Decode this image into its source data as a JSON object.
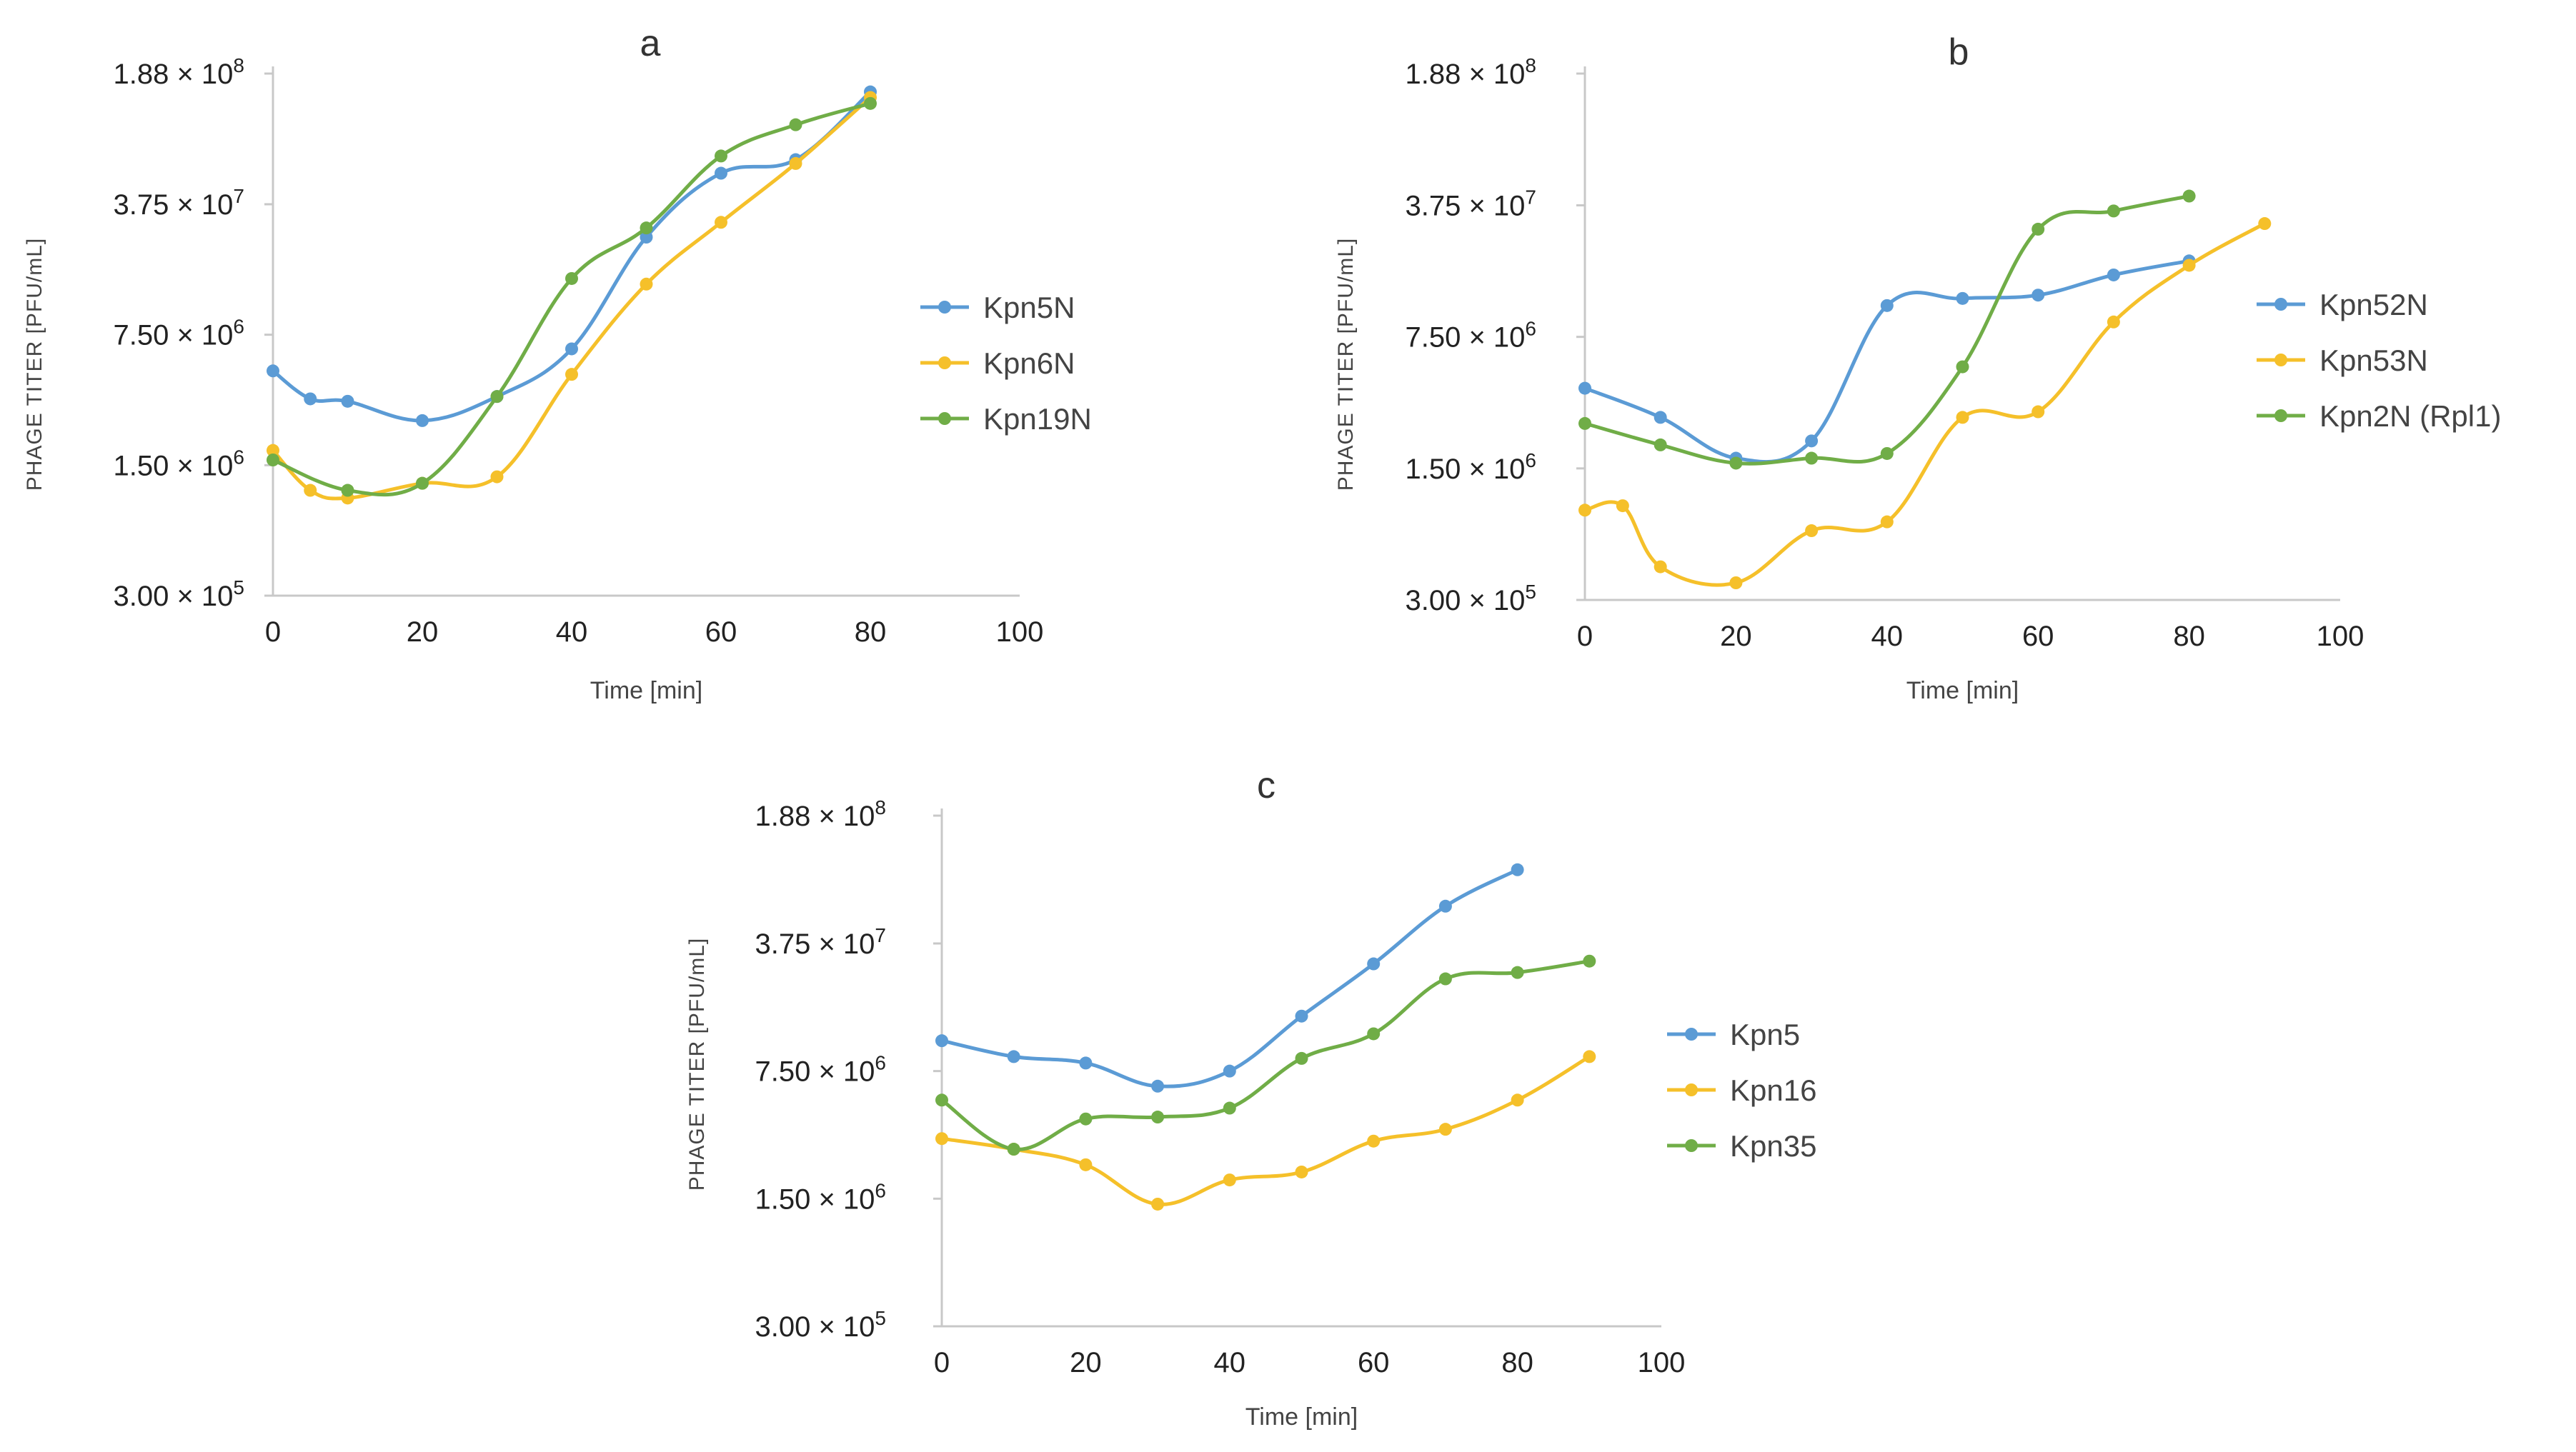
{
  "colors": {
    "blue": "#5b9bd5",
    "yellow": "#f5c02a",
    "green": "#70ad47"
  },
  "chart_data": [
    {
      "type": "line",
      "title": "a",
      "xlabel": "Time [min]",
      "ylabel": "PHAGE TITER [PFU/mL]",
      "xlim": [
        0,
        100
      ],
      "x_ticks": [
        "0",
        "20",
        "40",
        "60",
        "80",
        "100"
      ],
      "y_scale": "log",
      "ylim": [
        300000,
        188000000
      ],
      "y_ticks": [
        {
          "value": 188000000,
          "mant": "1.88",
          "exp": "8"
        },
        {
          "value": 37500000,
          "mant": "3.75",
          "exp": "7"
        },
        {
          "value": 7500000,
          "mant": "7.50",
          "exp": "6"
        },
        {
          "value": 1500000,
          "mant": "1.50",
          "exp": "6"
        },
        {
          "value": 300000,
          "mant": "3.00",
          "exp": "5"
        }
      ],
      "legend_position": "right",
      "series": [
        {
          "name": "Kpn5N",
          "color": "blue",
          "points": [
            [
              0,
              4800000
            ],
            [
              5,
              3400000
            ],
            [
              10,
              3300000
            ],
            [
              20,
              2600000
            ],
            [
              30,
              3500000
            ],
            [
              40,
              6300000
            ],
            [
              50,
              25000000
            ],
            [
              60,
              55000000
            ],
            [
              70,
              65000000
            ],
            [
              80,
              150000000
            ]
          ]
        },
        {
          "name": "Kpn6N",
          "color": "yellow",
          "points": [
            [
              0,
              1800000
            ],
            [
              5,
              1100000
            ],
            [
              10,
              1000000
            ],
            [
              20,
              1200000
            ],
            [
              30,
              1300000
            ],
            [
              40,
              4600000
            ],
            [
              50,
              14000000
            ],
            [
              60,
              30000000
            ],
            [
              70,
              62000000
            ],
            [
              80,
              140000000
            ]
          ]
        },
        {
          "name": "Kpn19N",
          "color": "green",
          "points": [
            [
              0,
              1600000
            ],
            [
              10,
              1100000
            ],
            [
              20,
              1200000
            ],
            [
              30,
              3500000
            ],
            [
              40,
              15000000
            ],
            [
              50,
              28000000
            ],
            [
              60,
              68000000
            ],
            [
              70,
              100000000
            ],
            [
              80,
              130000000
            ]
          ]
        }
      ]
    },
    {
      "type": "line",
      "title": "b",
      "xlabel": "Time [min]",
      "ylabel": "PHAGE TITER [PFU/mL]",
      "xlim": [
        0,
        100
      ],
      "x_ticks": [
        "0",
        "20",
        "40",
        "60",
        "80",
        "100"
      ],
      "y_scale": "log",
      "ylim": [
        300000,
        188000000
      ],
      "y_ticks": [
        {
          "value": 188000000,
          "mant": "1.88",
          "exp": "8"
        },
        {
          "value": 37500000,
          "mant": "3.75",
          "exp": "7"
        },
        {
          "value": 7500000,
          "mant": "7.50",
          "exp": "6"
        },
        {
          "value": 1500000,
          "mant": "1.50",
          "exp": "6"
        },
        {
          "value": 300000,
          "mant": "3.00",
          "exp": "5"
        }
      ],
      "legend_position": "right",
      "series": [
        {
          "name": "Kpn52N",
          "color": "blue",
          "points": [
            [
              0,
              4000000
            ],
            [
              10,
              2800000
            ],
            [
              20,
              1700000
            ],
            [
              30,
              2100000
            ],
            [
              40,
              11000000
            ],
            [
              50,
              12000000
            ],
            [
              60,
              12500000
            ],
            [
              70,
              16000000
            ],
            [
              80,
              19000000
            ]
          ]
        },
        {
          "name": "Kpn53N",
          "color": "yellow",
          "points": [
            [
              0,
              900000
            ],
            [
              5,
              950000
            ],
            [
              10,
              450000
            ],
            [
              20,
              370000
            ],
            [
              30,
              700000
            ],
            [
              40,
              780000
            ],
            [
              50,
              2800000
            ],
            [
              60,
              3000000
            ],
            [
              70,
              9000000
            ],
            [
              80,
              18000000
            ],
            [
              90,
              30000000
            ]
          ]
        },
        {
          "name": "Kpn2N (Rpl1)",
          "color": "green",
          "points": [
            [
              0,
              2600000
            ],
            [
              10,
              2000000
            ],
            [
              20,
              1600000
            ],
            [
              30,
              1700000
            ],
            [
              40,
              1800000
            ],
            [
              50,
              5200000
            ],
            [
              60,
              28000000
            ],
            [
              70,
              35000000
            ],
            [
              80,
              42000000
            ]
          ]
        }
      ]
    },
    {
      "type": "line",
      "title": "c",
      "xlabel": "Time [min]",
      "ylabel": "PHAGE TITER [PFU/mL]",
      "xlim": [
        0,
        100
      ],
      "x_ticks": [
        "0",
        "20",
        "40",
        "60",
        "80",
        "100"
      ],
      "y_scale": "log",
      "ylim": [
        300000,
        188000000
      ],
      "y_ticks": [
        {
          "value": 188000000,
          "mant": "1.88",
          "exp": "8"
        },
        {
          "value": 37500000,
          "mant": "3.75",
          "exp": "7"
        },
        {
          "value": 7500000,
          "mant": "7.50",
          "exp": "6"
        },
        {
          "value": 1500000,
          "mant": "1.50",
          "exp": "6"
        },
        {
          "value": 300000,
          "mant": "3.00",
          "exp": "5"
        }
      ],
      "legend_position": "right",
      "series": [
        {
          "name": "Kpn5",
          "color": "blue",
          "points": [
            [
              0,
              11000000
            ],
            [
              10,
              9000000
            ],
            [
              20,
              8300000
            ],
            [
              30,
              6200000
            ],
            [
              40,
              7500000
            ],
            [
              50,
              15000000
            ],
            [
              60,
              29000000
            ],
            [
              70,
              60000000
            ],
            [
              80,
              95000000
            ]
          ]
        },
        {
          "name": "Kpn16",
          "color": "yellow",
          "points": [
            [
              0,
              3200000
            ],
            [
              10,
              2800000
            ],
            [
              20,
              2300000
            ],
            [
              30,
              1400000
            ],
            [
              40,
              1900000
            ],
            [
              50,
              2100000
            ],
            [
              60,
              3100000
            ],
            [
              70,
              3600000
            ],
            [
              80,
              5200000
            ],
            [
              90,
              9000000
            ]
          ]
        },
        {
          "name": "Kpn35",
          "color": "green",
          "points": [
            [
              0,
              5200000
            ],
            [
              10,
              2800000
            ],
            [
              20,
              4100000
            ],
            [
              30,
              4200000
            ],
            [
              40,
              4700000
            ],
            [
              50,
              8800000
            ],
            [
              60,
              12000000
            ],
            [
              70,
              24000000
            ],
            [
              80,
              26000000
            ],
            [
              90,
              30000000
            ]
          ]
        }
      ]
    }
  ]
}
